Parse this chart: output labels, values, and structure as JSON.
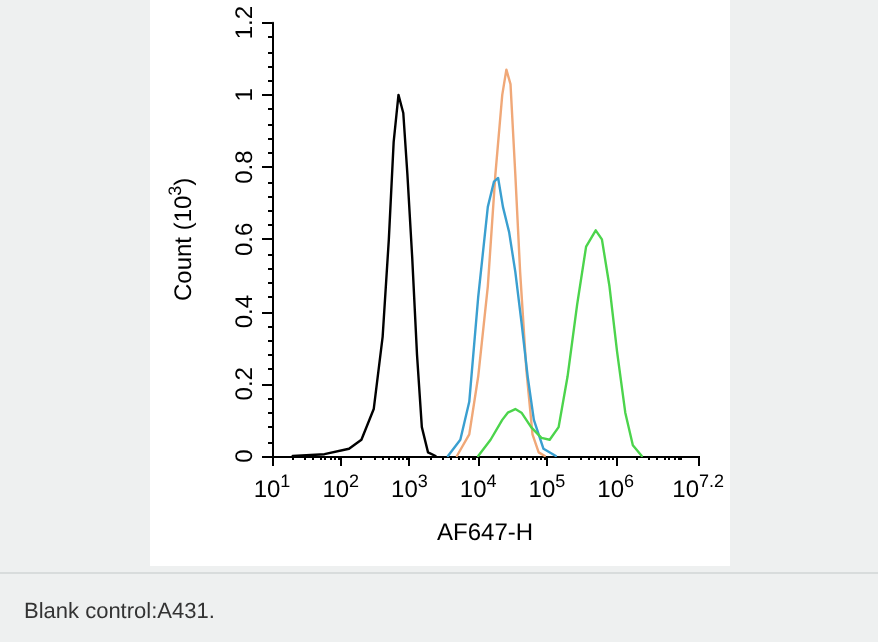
{
  "chart_data": {
    "type": "line",
    "xlabel": "AF647-H",
    "ylabel": "Count (10$^{3}$)",
    "log": "x",
    "grid": false,
    "marker": "none",
    "line_style": "solid",
    "xlim": [
      10,
      15848932
    ],
    "xticks": [
      {
        "value": 10,
        "label": "10$^{1}$"
      },
      {
        "value": 100,
        "label": "10$^{2}$"
      },
      {
        "value": 1000,
        "label": "10$^{3}$"
      },
      {
        "value": 10000,
        "label": "10$^{4}$"
      },
      {
        "value": 100000,
        "label": "10$^{5}$"
      },
      {
        "value": 1000000,
        "label": "10$^{6}$"
      },
      {
        "value": 15848932,
        "label": "10$^{7.2}$"
      }
    ],
    "ylim": [
      0,
      1.2
    ],
    "yticks": [
      0,
      0.2,
      0.4,
      0.6,
      0.8,
      1,
      1.2
    ],
    "annotations": [
      "Blank control:A431."
    ],
    "series": [
      {
        "color": "#000000",
        "x": [
          20,
          58,
          132,
          200,
          302,
          407,
          501,
          589,
          692,
          813,
          933,
          1096,
          1288,
          1514,
          1862,
          2399
        ],
        "values": [
          0,
          0.005,
          0.02,
          0.045,
          0.13,
          0.33,
          0.6,
          0.87,
          1.0,
          0.95,
          0.78,
          0.55,
          0.28,
          0.08,
          0.01,
          0
        ]
      },
      {
        "color": "#f0a878",
        "x": [
          4898,
          7413,
          10000,
          13804,
          17783,
          22387,
          25704,
          29512,
          34674,
          40738,
          50119,
          61660,
          75858,
          93325
        ],
        "values": [
          0,
          0.06,
          0.22,
          0.47,
          0.78,
          1.0,
          1.07,
          1.03,
          0.78,
          0.51,
          0.24,
          0.06,
          0.01,
          0
        ]
      },
      {
        "color": "#3a9fd0",
        "x": [
          3631,
          5495,
          7413,
          10000,
          13804,
          16982,
          19498,
          22909,
          28184,
          34674,
          42658,
          52481,
          64565,
          89125,
          134896
        ],
        "values": [
          0,
          0.045,
          0.15,
          0.44,
          0.69,
          0.76,
          0.77,
          0.69,
          0.62,
          0.51,
          0.37,
          0.22,
          0.1,
          0.02,
          0
        ]
      },
      {
        "color": "#4cd44c",
        "x": [
          10000,
          15136,
          22387,
          26915,
          34674,
          42658,
          58884,
          83176,
          109648,
          147911,
          199526,
          275423,
          371535,
          512861,
          630957,
          812831,
          1047129,
          1380384,
          1778279,
          2398833
        ],
        "values": [
          0,
          0.045,
          0.1,
          0.12,
          0.13,
          0.12,
          0.08,
          0.05,
          0.045,
          0.08,
          0.22,
          0.42,
          0.58,
          0.625,
          0.6,
          0.47,
          0.29,
          0.12,
          0.03,
          0
        ]
      }
    ]
  }
}
